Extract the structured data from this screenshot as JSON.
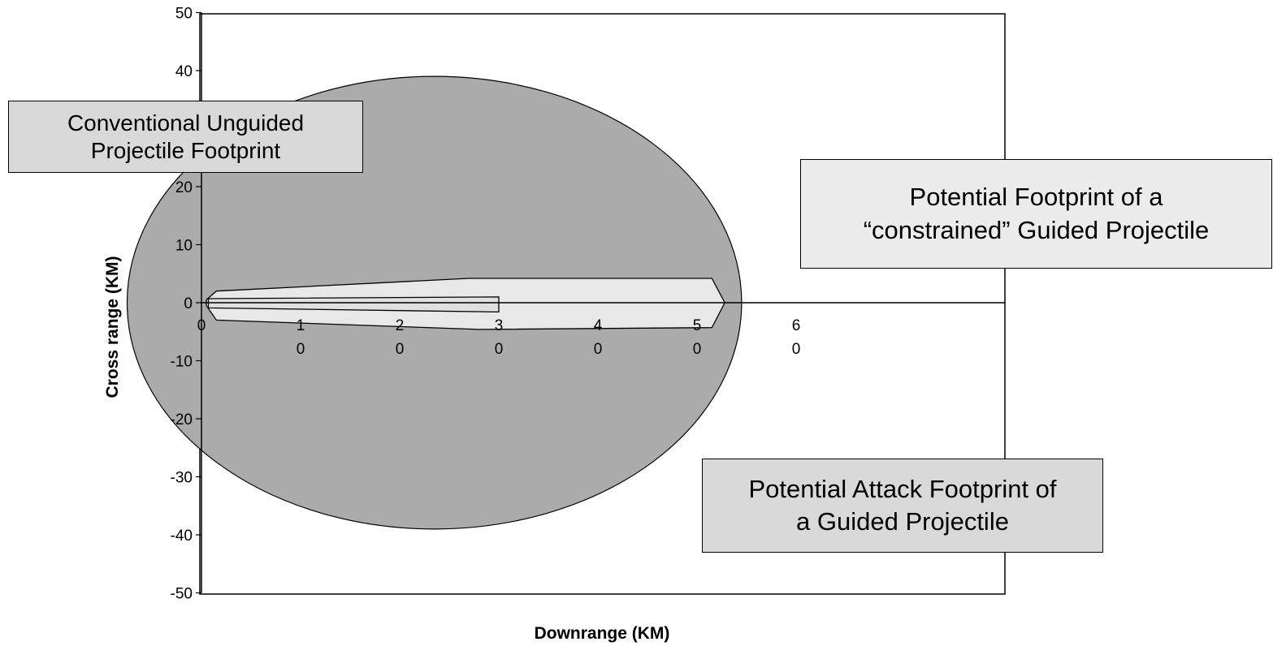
{
  "chart_data": {
    "type": "scatter",
    "title": "",
    "xlabel": "Downrange (KM)",
    "ylabel": "Cross range (KM)",
    "xlim": [
      0,
      80
    ],
    "ylim": [
      -50,
      50
    ],
    "x_ticks": [
      {
        "value": 0,
        "label": "0"
      },
      {
        "value": 10,
        "label": "1\n0"
      },
      {
        "value": 20,
        "label": "2\n0"
      },
      {
        "value": 30,
        "label": "3\n0"
      },
      {
        "value": 40,
        "label": "4\n0"
      },
      {
        "value": 50,
        "label": "5\n0"
      },
      {
        "value": 60,
        "label": "6\n0"
      }
    ],
    "y_ticks": [
      {
        "value": 50,
        "label": "50"
      },
      {
        "value": 40,
        "label": "40"
      },
      {
        "value": 20,
        "label": "20"
      },
      {
        "value": 10,
        "label": "10"
      },
      {
        "value": 0,
        "label": "0"
      },
      {
        "value": -10,
        "label": "-10"
      },
      {
        "value": -20,
        "label": "-20"
      },
      {
        "value": -30,
        "label": "-30"
      },
      {
        "value": -40,
        "label": "-40"
      },
      {
        "value": -50,
        "label": "-50"
      }
    ],
    "grid": false,
    "series": [
      {
        "name": "Potential Attack Footprint of a Guided Projectile",
        "shape": "ellipse",
        "center": [
          23.5,
          0
        ],
        "radii": [
          31,
          39
        ],
        "color": "#ababab"
      },
      {
        "name": "Potential Footprint of a “constrained” Guided Projectile",
        "shape": "polygon",
        "color": "#e8e8e8",
        "points": [
          [
            0.5,
            0.5
          ],
          [
            1.5,
            2
          ],
          [
            27,
            4.2
          ],
          [
            51.5,
            4.2
          ],
          [
            52.8,
            0
          ],
          [
            51.5,
            -4.3
          ],
          [
            28,
            -4.6
          ],
          [
            1.5,
            -3
          ],
          [
            0.5,
            -0.5
          ]
        ]
      },
      {
        "name": "Conventional Unguided Projectile Footprint",
        "shape": "polygon",
        "color": "#e0e0e0",
        "points": [
          [
            0.7,
            0.7
          ],
          [
            30,
            1
          ],
          [
            30,
            -1.6
          ],
          [
            0.7,
            -0.9
          ]
        ]
      }
    ],
    "annotations": [
      {
        "id": "unguided",
        "text": "Conventional Unguided\nProjectile  Footprint"
      },
      {
        "id": "constrained",
        "text": "Potential Footprint of a\n“constrained” Guided Projectile"
      },
      {
        "id": "attack",
        "text": "Potential Attack Footprint of\na Guided Projectile"
      }
    ]
  }
}
